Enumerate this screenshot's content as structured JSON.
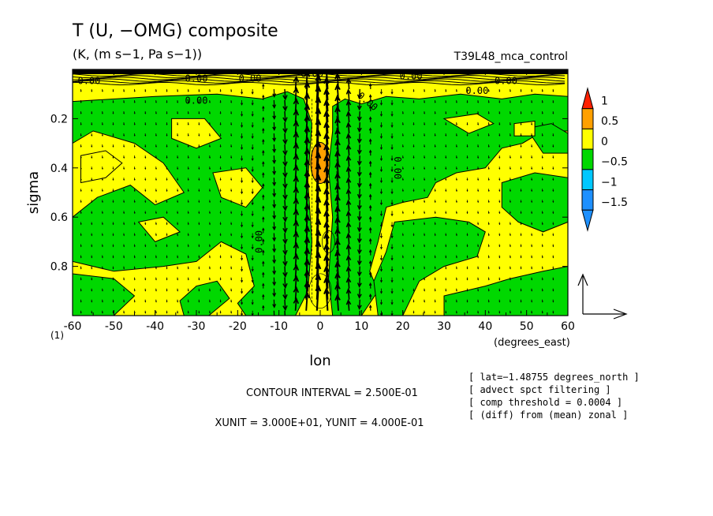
{
  "chart_data": {
    "type": "contour",
    "title": "T (U, −OMG) composite",
    "subtitle": "(K, (m s−1, Pa s−1))",
    "run_label": "T39L48_mca_control",
    "xlabel": "lon",
    "x_units": "(degrees_east)",
    "ylabel": "sigma",
    "xlim": [
      -60,
      60
    ],
    "ylim": [
      1,
      0
    ],
    "x_ticks": [
      "-60",
      "-50",
      "-40",
      "-30",
      "-20",
      "-10",
      "0",
      "10",
      "20",
      "30",
      "40",
      "50",
      "60"
    ],
    "y_ticks": [
      "0.2",
      "0.4",
      "0.6",
      "0.8"
    ],
    "y_bottom_label": "(1)",
    "colorbar": {
      "labels": [
        "1",
        "0.5",
        "0",
        "−0.5",
        "−1",
        "−1.5"
      ],
      "levels": [
        -1.75,
        -1.5,
        -1.0,
        -0.5,
        0,
        0.5,
        1.0,
        1.25
      ],
      "colors": [
        "#1e90ff",
        "#1e90ff",
        "#00c8ff",
        "#00d800",
        "#ffff00",
        "#ffa000",
        "#ff2000"
      ]
    },
    "contour_labels": [
      "0.00",
      "0.00",
      "0.00",
      "0.00",
      "0.00",
      "0.00",
      "0.00",
      "0.00",
      "0.00",
      "0.00",
      "0.00"
    ],
    "notes": {
      "contour_interval": "CONTOUR INTERVAL = 2.500E-01",
      "units": "XUNIT = 3.000E+01, YUNIT = 4.000E-01"
    },
    "info": [
      "[ lat=−1.48755 degrees_north ]",
      "[ advect spct filtering ]",
      "[ comp threshold = 0.0004 ]",
      "[ (diff) from (mean) zonal ]"
    ],
    "features": {
      "max_region": {
        "lon": 0,
        "sigma": 0.38,
        "value": 0.6
      },
      "background_level": "-0.5 to 0 (green) with 0 to 0.5 (yellow) patches"
    }
  }
}
